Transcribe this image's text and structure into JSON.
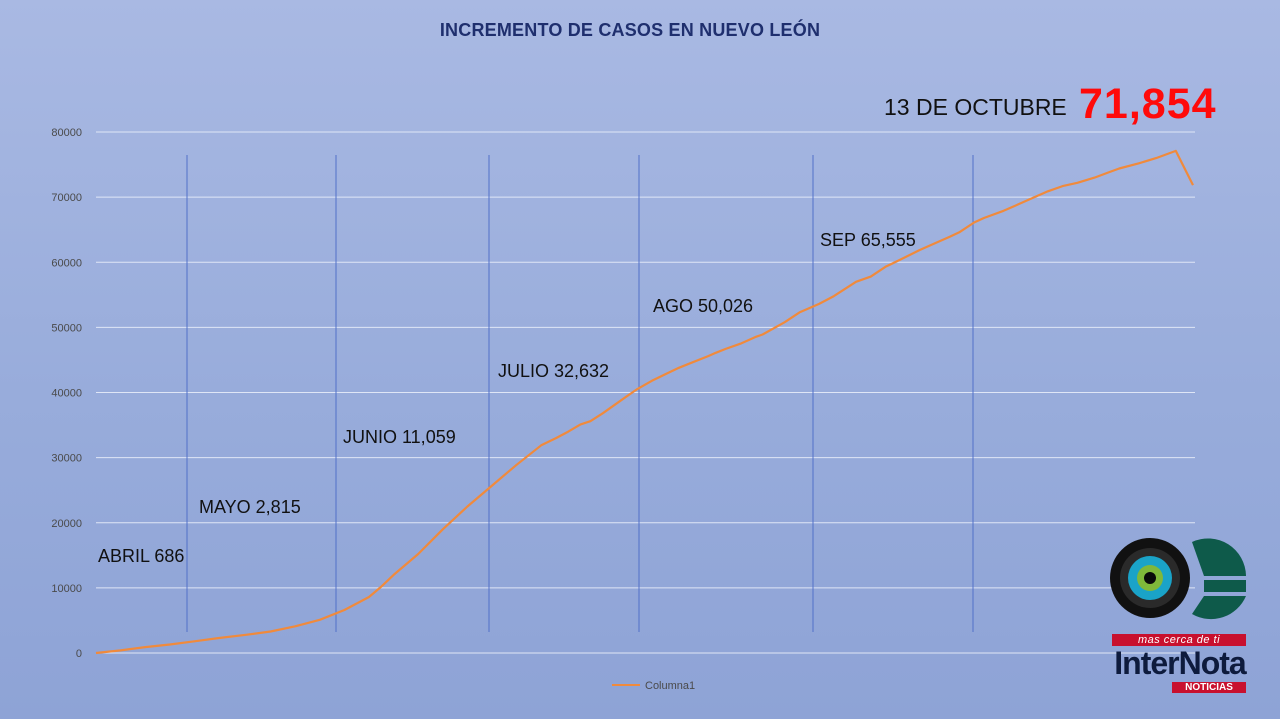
{
  "chart_data": {
    "type": "line",
    "title": "INCREMENTO DE CASOS EN NUEVO LEÓN",
    "ylim": [
      0,
      80000
    ],
    "yticks": [
      0,
      10000,
      20000,
      30000,
      40000,
      50000,
      60000,
      70000,
      80000
    ],
    "grid": true,
    "legend_position": "bottom",
    "series": [
      {
        "name": "Columna1",
        "color": "#f08a3c",
        "x": [
          0,
          10,
          20,
          30,
          40,
          50,
          61,
          71,
          81,
          91,
          101,
          111,
          116,
          121,
          131,
          141,
          151,
          161,
          171,
          181,
          187,
          192,
          197,
          201,
          206,
          215,
          220,
          226,
          232,
          237,
          241,
          249,
          252,
          256,
          262,
          268,
          271,
          280,
          286,
          294,
          300,
          309,
          315,
          321,
          327,
          335,
          341,
          347,
          351,
          357,
          361,
          369,
          375,
          381,
          387,
          393,
          399,
          406,
          411,
          416,
          424,
          431,
          439,
          446
        ],
        "values": [
          0,
          400,
          900,
          1300,
          1800,
          2300,
          2800,
          3300,
          4100,
          5100,
          6600,
          8600,
          10200,
          12000,
          15200,
          19000,
          22500,
          25700,
          28900,
          31900,
          33000,
          34000,
          35100,
          35600,
          36800,
          39200,
          40500,
          41800,
          42900,
          43800,
          44400,
          45600,
          46100,
          46700,
          47500,
          48500,
          48900,
          50800,
          52300,
          53600,
          54800,
          57000,
          57800,
          59300,
          60400,
          61900,
          62900,
          63900,
          64600,
          66100,
          66800,
          67900,
          68900,
          69900,
          70900,
          71700,
          72200,
          73000,
          73700,
          74400,
          75200,
          76000,
          77100,
          71854
        ]
      }
    ]
  },
  "annotations": {
    "date_label": "13 DE OCTUBRE",
    "total": "71,854",
    "months": [
      {
        "label": "ABRIL 686"
      },
      {
        "label": "MAYO 2,815"
      },
      {
        "label": "JUNIO 11,059"
      },
      {
        "label": "JULIO 32,632"
      },
      {
        "label": "AGO 50,026"
      },
      {
        "label": "SEP 65,555"
      }
    ]
  },
  "logo": {
    "tagline": "mas cerca de ti",
    "name": "InterNota",
    "sub": "NOTICIAS"
  }
}
